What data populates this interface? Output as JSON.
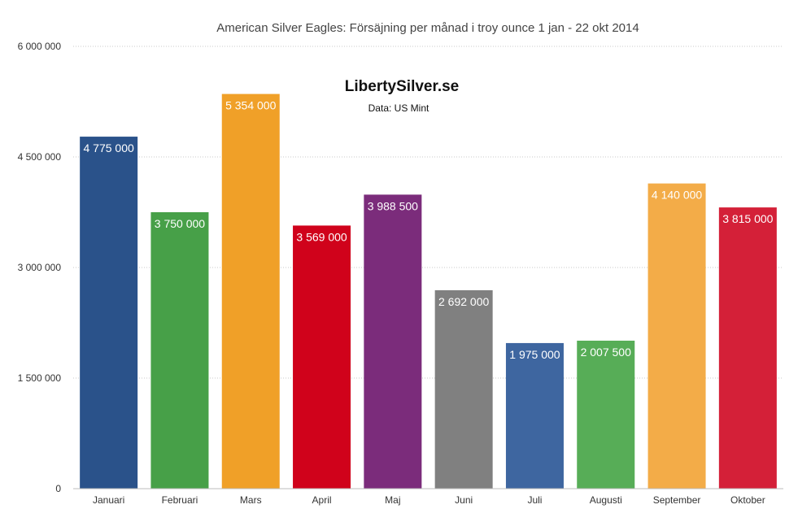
{
  "chart_data": {
    "type": "bar",
    "title": "American Silver Eagles: Försäjning per månad i troy ounce 1 jan - 22 okt 2014",
    "brand": "LibertySilver.se",
    "source": "Data: US Mint",
    "xlabel": "",
    "ylabel": "",
    "ylim": [
      0,
      6000000
    ],
    "yticks": [
      0,
      1500000,
      3000000,
      4500000,
      6000000
    ],
    "ytick_labels": [
      "0",
      "1 500 000",
      "3 000 000",
      "4 500 000",
      "6 000 000"
    ],
    "grid": true,
    "legend": "none",
    "categories": [
      "Januari",
      "Februari",
      "Mars",
      "April",
      "Maj",
      "Juni",
      "Juli",
      "Augusti",
      "September",
      "Oktober"
    ],
    "values": [
      4775000,
      3750000,
      5354000,
      3569000,
      3988500,
      2692000,
      1975000,
      2007500,
      4140000,
      3815000
    ],
    "value_labels": [
      "4 775 000",
      "3 750 000",
      "5 354 000",
      "3 569 000",
      "3 988 500",
      "2 692 000",
      "1 975 000",
      "2 007 500",
      "4 140 000",
      "3 815 000"
    ],
    "colors": [
      "#2a528a",
      "#47a048",
      "#f0a028",
      "#d0021b",
      "#7b2c7b",
      "#808080",
      "#3e66a0",
      "#57ad57",
      "#f3ac48",
      "#d42038"
    ]
  }
}
